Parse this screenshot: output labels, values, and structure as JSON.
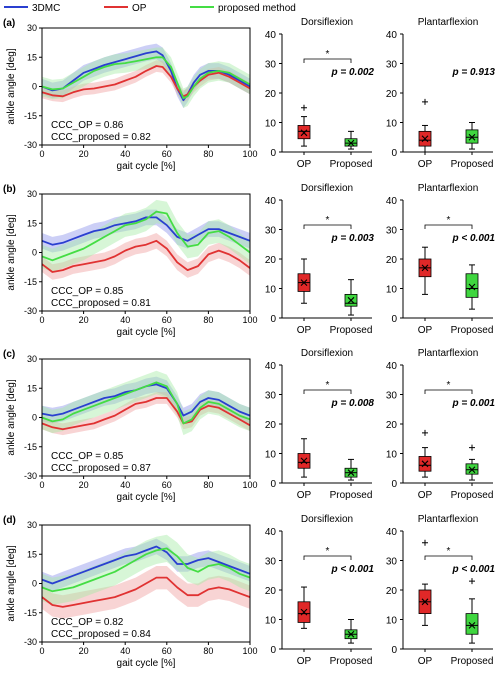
{
  "legend": [
    {
      "label": "3DMC",
      "color": "#2a3fd0"
    },
    {
      "label": "OP",
      "color": "#e03232"
    },
    {
      "label": "proposed method",
      "color": "#44dd44"
    }
  ],
  "colors": {
    "blue": "#2a3fd0",
    "red": "#e03232",
    "green": "#44dd44",
    "blue_band": "#8e95ea",
    "red_band": "#f0a0a0",
    "green_band": "#a6eba6",
    "box_red": "#e02828",
    "box_green": "#3fd63f"
  },
  "common": {
    "xlabel": "gait cycle [%]",
    "ylabel": "ankle angle [deg]",
    "dorsi_title": "Dorsiflexion",
    "planta_title": "Plantarflexion",
    "op_label": "OP",
    "proposed_label": "Proposed",
    "star": "*",
    "line_xticks": [
      "0",
      "20",
      "40",
      "60",
      "80",
      "100"
    ],
    "line_yticks": [
      "-30",
      "-15",
      "0",
      "15",
      "30"
    ]
  },
  "chart_data": [
    {
      "type": "line",
      "panel": "(a)",
      "xlim": [
        0,
        100
      ],
      "ylim": [
        -30,
        30
      ],
      "x": [
        0,
        5,
        10,
        15,
        20,
        25,
        30,
        35,
        40,
        45,
        50,
        55,
        58,
        62,
        65,
        68,
        70,
        73,
        76,
        80,
        85,
        90,
        95,
        100
      ],
      "series": [
        {
          "name": "3DMC",
          "values": [
            0,
            -2,
            -1,
            3,
            7,
            9,
            11,
            12.5,
            14,
            15.5,
            17,
            18,
            16,
            8,
            -1,
            -7,
            -4,
            2,
            6,
            8,
            8,
            6,
            3,
            0
          ],
          "band": 4
        },
        {
          "name": "OP",
          "values": [
            -3,
            -4.5,
            -5,
            -3,
            -1.5,
            -1,
            0,
            1,
            3,
            5,
            8,
            10.5,
            10,
            5,
            -1,
            -5,
            -4,
            0,
            3,
            6,
            7,
            5,
            2,
            -1
          ],
          "band": 3
        },
        {
          "name": "proposed method",
          "values": [
            0,
            -1.5,
            -1,
            2,
            5,
            8,
            10,
            11.5,
            12,
            13,
            14,
            15,
            15,
            10,
            2,
            -6,
            -5,
            0,
            4,
            7,
            8,
            7,
            4,
            1
          ],
          "band": 5
        }
      ],
      "annotations": [
        "CCC_OP = 0.86",
        "CCC_proposed = 0.82"
      ]
    },
    {
      "type": "line",
      "panel": "(b)",
      "xlim": [
        0,
        100
      ],
      "ylim": [
        -30,
        30
      ],
      "x": [
        0,
        5,
        10,
        15,
        20,
        25,
        30,
        35,
        40,
        45,
        50,
        55,
        60,
        65,
        70,
        75,
        80,
        85,
        90,
        95,
        100
      ],
      "series": [
        {
          "name": "3DMC",
          "values": [
            6,
            4,
            5,
            7,
            9,
            11,
            12,
            14,
            15,
            16,
            18,
            18,
            14,
            8,
            6,
            9,
            12,
            12,
            10,
            8,
            6
          ],
          "band": 4
        },
        {
          "name": "OP",
          "values": [
            -6,
            -10,
            -9,
            -7,
            -6,
            -5,
            -4,
            -2,
            1,
            3,
            4,
            6,
            2,
            -5,
            -9,
            -7,
            -1,
            1,
            -1,
            -4,
            -8
          ],
          "band": 4
        },
        {
          "name": "proposed method",
          "values": [
            -2,
            -4,
            -2,
            0,
            2,
            5,
            8,
            11,
            14,
            15,
            17,
            21,
            20,
            10,
            3,
            4,
            10,
            11,
            8,
            4,
            0
          ],
          "band": 6
        }
      ],
      "annotations": [
        "CCC_OP = 0.85",
        "CCC_proposed = 0.81"
      ]
    },
    {
      "type": "line",
      "panel": "(c)",
      "xlim": [
        0,
        100
      ],
      "ylim": [
        -30,
        30
      ],
      "x": [
        0,
        5,
        10,
        15,
        20,
        25,
        30,
        35,
        40,
        45,
        50,
        55,
        60,
        65,
        68,
        72,
        76,
        80,
        85,
        90,
        95,
        100
      ],
      "series": [
        {
          "name": "3DMC",
          "values": [
            2,
            1,
            2,
            4,
            6,
            8,
            10,
            11,
            13,
            14,
            16,
            17,
            15,
            7,
            1,
            3,
            8,
            10,
            9,
            6,
            3,
            1
          ],
          "band": 4
        },
        {
          "name": "OP",
          "values": [
            -3,
            -5,
            -6,
            -5,
            -4,
            -3,
            -1,
            1,
            4,
            7,
            8,
            10,
            10,
            3,
            -3,
            -2,
            4,
            6,
            5,
            2,
            -1,
            -4
          ],
          "band": 3
        },
        {
          "name": "proposed method",
          "values": [
            0,
            -2,
            -1,
            2,
            4,
            6,
            8,
            10,
            12,
            14,
            16,
            18,
            16,
            7,
            -3,
            -1,
            5,
            8,
            7,
            4,
            1,
            -1
          ],
          "band": 6
        }
      ],
      "annotations": [
        "CCC_OP = 0.85",
        "CCC_proposed = 0.87"
      ]
    },
    {
      "type": "line",
      "panel": "(d)",
      "xlim": [
        0,
        100
      ],
      "ylim": [
        -30,
        30
      ],
      "x": [
        0,
        5,
        10,
        15,
        20,
        25,
        30,
        35,
        40,
        45,
        50,
        55,
        60,
        65,
        70,
        75,
        80,
        85,
        90,
        95,
        100
      ],
      "series": [
        {
          "name": "3DMC",
          "values": [
            2,
            0,
            2,
            4,
            6,
            8,
            10,
            12,
            14,
            15,
            17,
            19,
            16,
            10,
            10,
            12,
            13,
            11,
            9,
            7,
            5
          ],
          "band": 4
        },
        {
          "name": "OP",
          "values": [
            -7,
            -11,
            -12,
            -11,
            -10,
            -9,
            -8,
            -7,
            -5,
            -3,
            0,
            3,
            3,
            -2,
            -6,
            -6,
            -3,
            -2,
            -3,
            -5,
            -7
          ],
          "band": 6
        },
        {
          "name": "proposed method",
          "values": [
            -2,
            -4,
            -3,
            -2,
            0,
            2,
            4,
            6,
            9,
            12,
            15,
            17,
            18,
            14,
            8,
            6,
            9,
            10,
            8,
            5,
            3
          ],
          "band": 7
        }
      ],
      "annotations": [
        "CCC_OP = 0.82",
        "CCC_proposed = 0.84"
      ]
    },
    {
      "type": "box",
      "panel": "(a)",
      "title": "Dorsiflexion",
      "ylim": [
        0,
        40
      ],
      "yticks": [
        "0",
        "10",
        "20",
        "30",
        "40"
      ],
      "p_text": "p = 0.002",
      "significant": true,
      "boxes": [
        {
          "category": "OP",
          "color": "red",
          "min": 2,
          "q1": 4.5,
          "median": 7,
          "mean": 6.5,
          "q3": 9,
          "max": 12,
          "outliers": [
            15
          ]
        },
        {
          "category": "Proposed",
          "color": "green",
          "min": 1,
          "q1": 2,
          "median": 3,
          "mean": 3,
          "q3": 4.5,
          "max": 7,
          "outliers": []
        }
      ]
    },
    {
      "type": "box",
      "panel": "(a)",
      "title": "Plantarflexion",
      "ylim": [
        0,
        40
      ],
      "yticks": [
        "0",
        "10",
        "20",
        "30",
        "40"
      ],
      "p_text": "p = 0.913",
      "significant": false,
      "boxes": [
        {
          "category": "OP",
          "color": "red",
          "min": 0,
          "q1": 2,
          "median": 4,
          "mean": 4.5,
          "q3": 7,
          "max": 9,
          "outliers": [
            17
          ]
        },
        {
          "category": "Proposed",
          "color": "green",
          "min": 1,
          "q1": 3,
          "median": 5,
          "mean": 5,
          "q3": 7.5,
          "max": 10,
          "outliers": []
        }
      ]
    },
    {
      "type": "box",
      "panel": "(b)",
      "title": "Dorsiflexion",
      "ylim": [
        0,
        40
      ],
      "yticks": [
        "0",
        "10",
        "20",
        "30",
        "40"
      ],
      "p_text": "p = 0.003",
      "significant": true,
      "boxes": [
        {
          "category": "OP",
          "color": "red",
          "min": 5,
          "q1": 9,
          "median": 12,
          "mean": 12,
          "q3": 15,
          "max": 20,
          "outliers": []
        },
        {
          "category": "Proposed",
          "color": "green",
          "min": 1,
          "q1": 4,
          "median": 5,
          "mean": 6,
          "q3": 8,
          "max": 13,
          "outliers": []
        }
      ]
    },
    {
      "type": "box",
      "panel": "(b)",
      "title": "Plantarflexion",
      "ylim": [
        0,
        40
      ],
      "yticks": [
        "0",
        "10",
        "20",
        "30",
        "40"
      ],
      "p_text": "p < 0.001",
      "significant": true,
      "boxes": [
        {
          "category": "OP",
          "color": "red",
          "min": 8,
          "q1": 14,
          "median": 17,
          "mean": 17,
          "q3": 20,
          "max": 24,
          "outliers": []
        },
        {
          "category": "Proposed",
          "color": "green",
          "min": 3,
          "q1": 7,
          "median": 10,
          "mean": 10.5,
          "q3": 15,
          "max": 18,
          "outliers": []
        }
      ]
    },
    {
      "type": "box",
      "panel": "(c)",
      "title": "Dorsiflexion",
      "ylim": [
        0,
        40
      ],
      "yticks": [
        "0",
        "10",
        "20",
        "30",
        "40"
      ],
      "p_text": "p = 0.008",
      "significant": true,
      "boxes": [
        {
          "category": "OP",
          "color": "red",
          "min": 2,
          "q1": 5,
          "median": 7,
          "mean": 7.5,
          "q3": 10,
          "max": 15,
          "outliers": []
        },
        {
          "category": "Proposed",
          "color": "green",
          "min": 1,
          "q1": 2,
          "median": 3.5,
          "mean": 3.5,
          "q3": 5,
          "max": 8,
          "outliers": []
        }
      ]
    },
    {
      "type": "box",
      "panel": "(c)",
      "title": "Plantarflexion",
      "ylim": [
        0,
        40
      ],
      "yticks": [
        "0",
        "10",
        "20",
        "30",
        "40"
      ],
      "p_text": "p = 0.001",
      "significant": true,
      "boxes": [
        {
          "category": "OP",
          "color": "red",
          "min": 2,
          "q1": 4,
          "median": 6,
          "mean": 6.5,
          "q3": 9,
          "max": 12,
          "outliers": [
            17
          ]
        },
        {
          "category": "Proposed",
          "color": "green",
          "min": 1,
          "q1": 3,
          "median": 4.5,
          "mean": 4.5,
          "q3": 6.5,
          "max": 8,
          "outliers": [
            12
          ]
        }
      ]
    },
    {
      "type": "box",
      "panel": "(d)",
      "title": "Dorsiflexion",
      "ylim": [
        0,
        40
      ],
      "yticks": [
        "0",
        "10",
        "20",
        "30",
        "40"
      ],
      "p_text": "p < 0.001",
      "significant": true,
      "boxes": [
        {
          "category": "OP",
          "color": "red",
          "min": 7,
          "q1": 9,
          "median": 12,
          "mean": 12.5,
          "q3": 16,
          "max": 21,
          "outliers": []
        },
        {
          "category": "Proposed",
          "color": "green",
          "min": 2,
          "q1": 3.5,
          "median": 5,
          "mean": 5,
          "q3": 6.5,
          "max": 10,
          "outliers": []
        }
      ]
    },
    {
      "type": "box",
      "panel": "(d)",
      "title": "Plantarflexion",
      "ylim": [
        0,
        40
      ],
      "yticks": [
        "0",
        "10",
        "20",
        "30",
        "40"
      ],
      "p_text": "p < 0.001",
      "significant": true,
      "boxes": [
        {
          "category": "OP",
          "color": "red",
          "min": 8,
          "q1": 12,
          "median": 16,
          "mean": 16,
          "q3": 20,
          "max": 22,
          "outliers": [
            36
          ]
        },
        {
          "category": "Proposed",
          "color": "green",
          "min": 2,
          "q1": 5,
          "median": 8,
          "mean": 8,
          "q3": 12,
          "max": 17,
          "outliers": [
            23
          ]
        }
      ]
    }
  ]
}
